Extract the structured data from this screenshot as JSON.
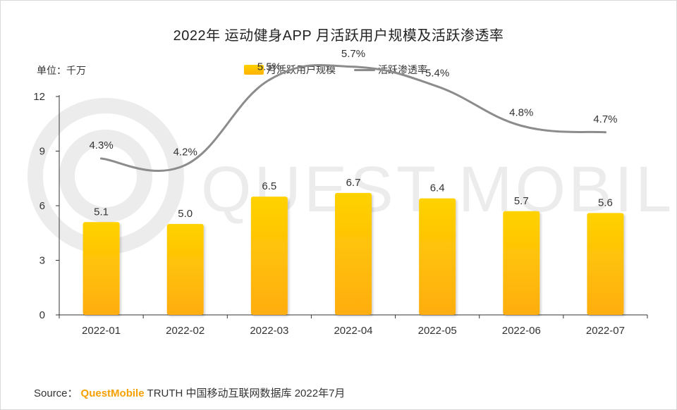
{
  "chart_data": {
    "type": "bar",
    "title": "2022年 运动健身APP 月活跃用户规模及活跃渗透率",
    "unit_label": "单位：千万",
    "categories": [
      "2022-01",
      "2022-02",
      "2022-03",
      "2022-04",
      "2022-05",
      "2022-06",
      "2022-07"
    ],
    "series": [
      {
        "name": "月活跃用户规模",
        "type": "bar",
        "values": [
          5.1,
          5.0,
          6.5,
          6.7,
          6.4,
          5.7,
          5.6
        ],
        "labels": [
          "5.1",
          "5.0",
          "6.5",
          "6.7",
          "6.4",
          "5.7",
          "5.6"
        ],
        "color": "#ffc400"
      },
      {
        "name": "活跃渗透率",
        "type": "line",
        "values": [
          4.3,
          4.2,
          5.5,
          5.7,
          5.4,
          4.8,
          4.7
        ],
        "labels": [
          "4.3%",
          "4.2%",
          "5.5%",
          "5.7%",
          "5.4%",
          "4.8%",
          "4.7%"
        ],
        "color": "#8c8c8c"
      }
    ],
    "yticks": [
      "0",
      "3",
      "6",
      "9",
      "12"
    ],
    "ylim": [
      0,
      12
    ],
    "legend_position": "top-center",
    "grid": false,
    "watermark": "QUEST MOBILE"
  },
  "source": {
    "prefix": "Source：",
    "brand": "QuestMobile",
    "text": "TRUTH 中国移动互联网数据库 2022年7月"
  }
}
